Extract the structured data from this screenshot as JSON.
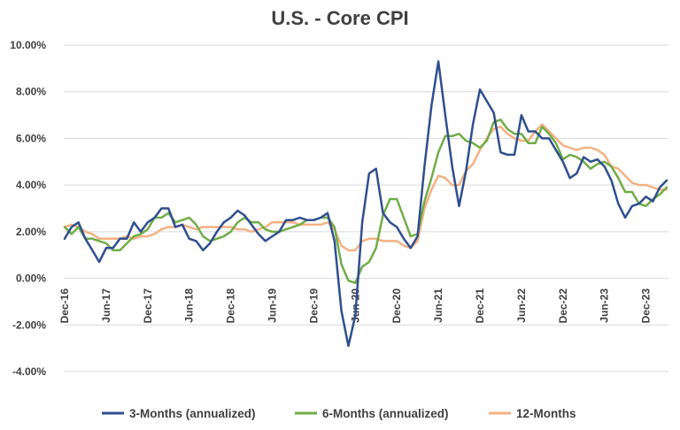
{
  "chart_data": {
    "type": "line",
    "title": "U.S. - Core CPI",
    "xlabel": "",
    "ylabel": "",
    "ylim": [
      -4,
      10
    ],
    "y_tick_labels": [
      "-4.00%",
      "-2.00%",
      "0.00%",
      "2.00%",
      "4.00%",
      "6.00%",
      "8.00%",
      "10.00%"
    ],
    "y_tick_values": [
      -4,
      -2,
      0,
      2,
      4,
      6,
      8,
      10
    ],
    "x_start": "Dec-16",
    "x_tick_labels": [
      "Dec-16",
      "Jun-17",
      "Dec-17",
      "Jun-18",
      "Dec-18",
      "Jun-19",
      "Dec-19",
      "Jun-20",
      "Dec-20",
      "Jun-21",
      "Dec-21",
      "Jun-22",
      "Dec-22",
      "Jun-23",
      "Dec-23"
    ],
    "x_tick_every": 6,
    "grid": true,
    "legend_position": "bottom",
    "series": [
      {
        "name": "3-Months (annualized)",
        "color": "#2F4F8F",
        "values": [
          1.7,
          2.2,
          2.4,
          1.7,
          1.2,
          0.7,
          1.3,
          1.3,
          1.7,
          1.7,
          2.4,
          2.0,
          2.4,
          2.6,
          3.0,
          3.0,
          2.2,
          2.3,
          1.7,
          1.6,
          1.2,
          1.5,
          2.0,
          2.4,
          2.6,
          2.9,
          2.7,
          2.3,
          1.9,
          1.6,
          1.8,
          2.0,
          2.5,
          2.5,
          2.6,
          2.5,
          2.5,
          2.6,
          2.8,
          1.6,
          -1.4,
          -2.9,
          -1.6,
          2.4,
          4.5,
          4.7,
          2.8,
          2.4,
          2.2,
          1.7,
          1.3,
          1.8,
          4.8,
          7.4,
          9.3,
          7.0,
          4.8,
          3.1,
          4.6,
          6.6,
          8.1,
          7.6,
          7.1,
          5.4,
          5.3,
          5.3,
          7.0,
          6.3,
          6.3,
          6.0,
          6.0,
          5.5,
          5.0,
          4.3,
          4.5,
          5.2,
          5.0,
          5.1,
          4.8,
          4.2,
          3.2,
          2.6,
          3.1,
          3.2,
          3.5,
          3.3,
          3.9,
          4.2
        ]
      },
      {
        "name": "6-Months (annualized)",
        "color": "#70AD47",
        "values": [
          2.2,
          1.9,
          2.2,
          1.7,
          1.7,
          1.6,
          1.5,
          1.2,
          1.2,
          1.5,
          1.8,
          1.9,
          2.1,
          2.6,
          2.6,
          2.8,
          2.4,
          2.5,
          2.6,
          2.3,
          1.8,
          1.6,
          1.7,
          1.8,
          2.0,
          2.4,
          2.6,
          2.4,
          2.4,
          2.1,
          2.0,
          2.0,
          2.1,
          2.2,
          2.3,
          2.5,
          2.5,
          2.6,
          2.6,
          2.2,
          0.6,
          -0.1,
          -0.2,
          0.5,
          0.7,
          1.3,
          2.7,
          3.4,
          3.4,
          2.6,
          1.8,
          1.9,
          3.3,
          4.3,
          5.4,
          6.1,
          6.1,
          6.2,
          5.9,
          5.8,
          5.6,
          5.9,
          6.7,
          6.8,
          6.4,
          6.2,
          6.2,
          5.8,
          5.8,
          6.5,
          6.2,
          5.8,
          5.1,
          5.3,
          5.2,
          5.0,
          4.7,
          4.9,
          5.0,
          4.8,
          4.3,
          3.7,
          3.7,
          3.2,
          3.1,
          3.4,
          3.6,
          3.9
        ]
      },
      {
        "name": "12-Months",
        "color": "#F4B183",
        "values": [
          2.2,
          2.3,
          2.2,
          2.0,
          1.9,
          1.7,
          1.7,
          1.7,
          1.7,
          1.8,
          1.7,
          1.8,
          1.8,
          1.9,
          2.1,
          2.2,
          2.2,
          2.3,
          2.2,
          2.1,
          2.2,
          2.2,
          2.2,
          2.2,
          2.2,
          2.1,
          2.1,
          2.0,
          2.1,
          2.2,
          2.4,
          2.4,
          2.4,
          2.4,
          2.3,
          2.3,
          2.3,
          2.3,
          2.4,
          2.1,
          1.4,
          1.2,
          1.2,
          1.6,
          1.7,
          1.7,
          1.6,
          1.6,
          1.6,
          1.4,
          1.3,
          1.6,
          3.0,
          3.8,
          4.4,
          4.3,
          4.0,
          4.0,
          4.6,
          4.9,
          5.5,
          6.0,
          6.4,
          6.5,
          6.2,
          6.0,
          5.9,
          5.9,
          6.3,
          6.6,
          6.3,
          6.0,
          5.7,
          5.6,
          5.5,
          5.6,
          5.6,
          5.5,
          5.3,
          4.8,
          4.7,
          4.4,
          4.1,
          4.0,
          4.0,
          3.9,
          3.8,
          3.8
        ]
      }
    ]
  }
}
